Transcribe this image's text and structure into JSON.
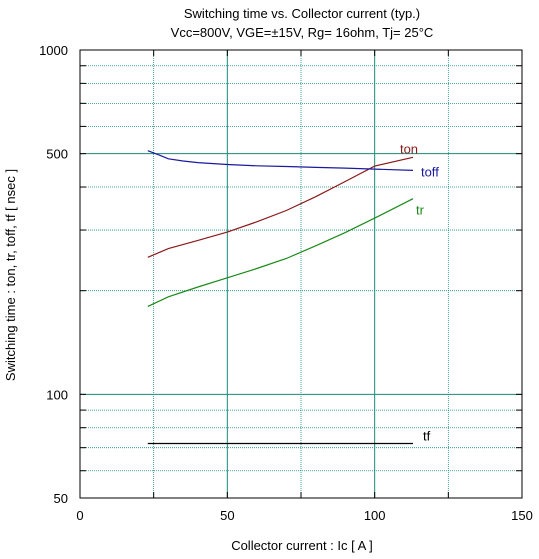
{
  "chart_data": {
    "type": "line",
    "title": "Switching time  vs.  Collector current  (typ.)",
    "subtitle": "Vcc=800V, VGE=±15V, Rg= 16ohm, Tj= 25°C",
    "xlabel": "Collector current  :  Ic  [ A ]",
    "ylabel": "Switching time  :  ton, tr, toff, tf  [ nsec ]",
    "xlim": [
      0,
      150
    ],
    "ylim": [
      50,
      1000
    ],
    "yscale": "log",
    "grid": true,
    "x_ticks": [
      "0",
      "50",
      "100",
      "150"
    ],
    "y_ticks": [
      "50",
      "100",
      "500",
      "1000"
    ],
    "series": [
      {
        "name": "ton",
        "color": "#8b1a1a",
        "x": [
          23,
          30,
          40,
          50,
          60,
          70,
          80,
          90,
          100,
          113
        ],
        "y": [
          250,
          265,
          280,
          296,
          317,
          342,
          375,
          415,
          460,
          488
        ]
      },
      {
        "name": "toff",
        "color": "#1a1aa0",
        "x": [
          23,
          27,
          30,
          35,
          40,
          50,
          60,
          70,
          80,
          90,
          100,
          113
        ],
        "y": [
          510,
          495,
          483,
          476,
          471,
          465,
          461,
          459,
          456,
          454,
          451,
          447
        ]
      },
      {
        "name": "tr",
        "color": "#1a8a1a",
        "x": [
          23,
          30,
          40,
          50,
          60,
          70,
          80,
          90,
          100,
          113
        ],
        "y": [
          180,
          192,
          205,
          218,
          232,
          248,
          270,
          295,
          325,
          370
        ]
      },
      {
        "name": "tf",
        "color": "#000000",
        "x": [
          23,
          40,
          60,
          80,
          100,
          113
        ],
        "y": [
          72,
          72,
          72,
          72,
          72,
          72
        ]
      }
    ]
  }
}
